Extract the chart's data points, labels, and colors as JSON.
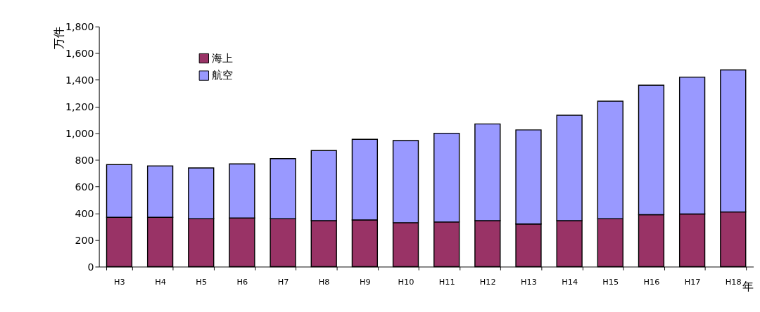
{
  "chart_data": {
    "type": "bar",
    "stacked": true,
    "ylabel": "万件",
    "xlabel": "年",
    "categories": [
      "H3",
      "H4",
      "H5",
      "H6",
      "H7",
      "H8",
      "H9",
      "H10",
      "H11",
      "H12",
      "H13",
      "H14",
      "H15",
      "H16",
      "H17",
      "H18"
    ],
    "series": [
      {
        "name": "海上",
        "color": "#993366",
        "values": [
          370,
          370,
          360,
          365,
          360,
          345,
          350,
          330,
          335,
          345,
          320,
          345,
          360,
          390,
          395,
          410
        ]
      },
      {
        "name": "航空",
        "color": "#9999ff",
        "values": [
          395,
          385,
          380,
          405,
          450,
          525,
          605,
          615,
          665,
          725,
          705,
          790,
          880,
          970,
          1025,
          1065
        ]
      }
    ],
    "ylim": [
      0,
      1800
    ],
    "yticks": [
      {
        "value": 0,
        "label": "0"
      },
      {
        "value": 200,
        "label": "200"
      },
      {
        "value": 400,
        "label": "400"
      },
      {
        "value": 600,
        "label": "600"
      },
      {
        "value": 800,
        "label": "800"
      },
      {
        "value": 1000,
        "label": "1,000"
      },
      {
        "value": 1200,
        "label": "1,200"
      },
      {
        "value": 1400,
        "label": "1,400"
      },
      {
        "value": 1600,
        "label": "1,600"
      },
      {
        "value": 1800,
        "label": "1,800"
      }
    ],
    "grid": false,
    "legend": "top left"
  }
}
